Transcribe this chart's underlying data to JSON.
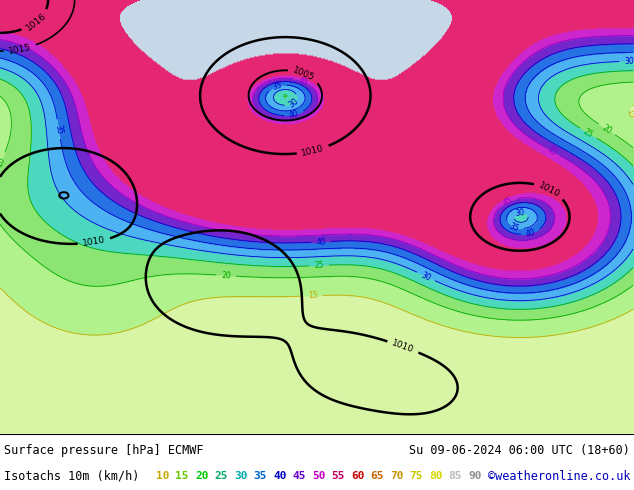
{
  "title_left": "Surface pressure [hPa] ECMWF",
  "title_right": "Su 09-06-2024 06:00 UTC (18+60)",
  "subtitle_left": "Isotachs 10m (km/h)",
  "subtitle_right": "©weatheronline.co.uk",
  "isotach_labels": [
    "10",
    "15",
    "20",
    "25",
    "30",
    "35",
    "40",
    "45",
    "50",
    "55",
    "60",
    "65",
    "70",
    "75",
    "80",
    "85",
    "90"
  ],
  "isotach_legend_colors": [
    "#c8c800",
    "#64c800",
    "#00c800",
    "#00c864",
    "#00c8c8",
    "#0064c8",
    "#0000c8",
    "#6400c8",
    "#c800c8",
    "#c80064",
    "#c80000",
    "#c86400",
    "#c89600",
    "#c8c800",
    "#ffff00",
    "#ffffff",
    "#aaaaaa"
  ],
  "background_color": "#ffffff",
  "sea_color": "#c8d8e8",
  "land_base_color": "#e8f4d8",
  "font_size_title": 8.5,
  "font_size_subtitle": 8.5,
  "font_size_legend": 8
}
